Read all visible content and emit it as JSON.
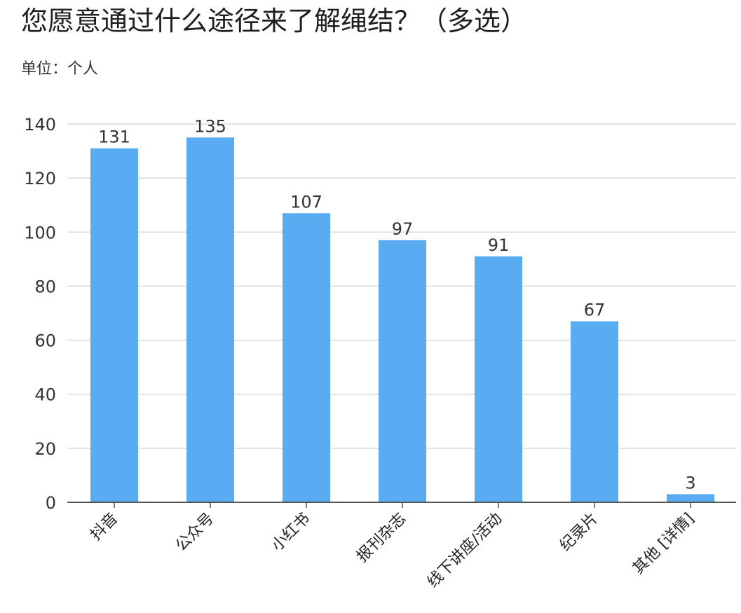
{
  "title": "您愿意通过什么途径来了解绳结？（多选）",
  "unit": "单位：个人",
  "colors": {
    "bar": "#5aacf2",
    "grid": "#d9d9d9",
    "axis": "#555555"
  },
  "chart_data": {
    "type": "bar",
    "title": "您愿意通过什么途径来了解绳结？（多选）",
    "subtitle": "单位：个人",
    "categories": [
      "抖音",
      "公众号",
      "小红书",
      "报刊杂志",
      "线下讲座/活动",
      "纪录片",
      "其他 [详情]"
    ],
    "values": [
      131,
      135,
      107,
      97,
      91,
      67,
      3
    ],
    "ylim": [
      0,
      140
    ],
    "yticks": [
      0,
      20,
      40,
      60,
      80,
      100,
      120,
      140
    ],
    "grid": true,
    "legend": "none",
    "xlabel": "",
    "ylabel": ""
  }
}
